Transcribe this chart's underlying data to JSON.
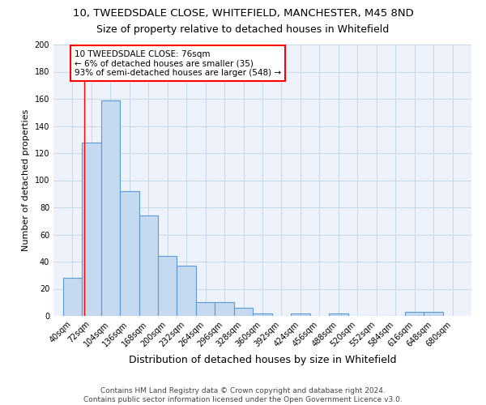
{
  "title1": "10, TWEEDSDALE CLOSE, WHITEFIELD, MANCHESTER, M45 8ND",
  "title2": "Size of property relative to detached houses in Whitefield",
  "xlabel": "Distribution of detached houses by size in Whitefield",
  "ylabel": "Number of detached properties",
  "bar_values": [
    28,
    128,
    159,
    92,
    74,
    44,
    37,
    10,
    10,
    6,
    2,
    0,
    2,
    0,
    2,
    0,
    0,
    0,
    3,
    3
  ],
  "bin_labels": [
    "40sqm",
    "72sqm",
    "104sqm",
    "136sqm",
    "168sqm",
    "200sqm",
    "232sqm",
    "264sqm",
    "296sqm",
    "328sqm",
    "360sqm",
    "392sqm",
    "424sqm",
    "456sqm",
    "488sqm",
    "520sqm",
    "552sqm",
    "584sqm",
    "616sqm",
    "648sqm",
    "680sqm"
  ],
  "bin_edges": [
    40,
    72,
    104,
    136,
    168,
    200,
    232,
    264,
    296,
    328,
    360,
    392,
    424,
    456,
    488,
    520,
    552,
    584,
    616,
    648,
    680
  ],
  "bar_color": "#c5d9f1",
  "bar_edge_color": "#5b9bd5",
  "red_line_x": 76,
  "annotation_text": "10 TWEEDSDALE CLOSE: 76sqm\n← 6% of detached houses are smaller (35)\n93% of semi-detached houses are larger (548) →",
  "annotation_box_color": "white",
  "annotation_box_edge_color": "red",
  "ylim": [
    0,
    200
  ],
  "yticks": [
    0,
    20,
    40,
    60,
    80,
    100,
    120,
    140,
    160,
    180,
    200
  ],
  "grid_color": "#c8d8e8",
  "background_color": "#eef2fb",
  "footer_text": "Contains HM Land Registry data © Crown copyright and database right 2024.\nContains public sector information licensed under the Open Government Licence v3.0.",
  "title1_fontsize": 9.5,
  "title2_fontsize": 9,
  "xlabel_fontsize": 9,
  "ylabel_fontsize": 8,
  "tick_fontsize": 7,
  "annotation_fontsize": 7.5,
  "footer_fontsize": 6.5
}
